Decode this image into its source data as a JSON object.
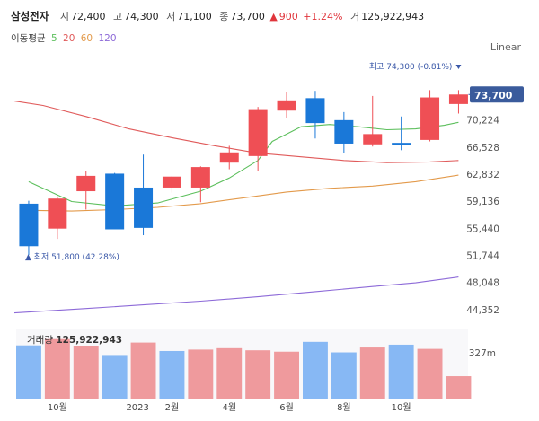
{
  "header": {
    "stock_name": "삼성전자",
    "open_label": "시",
    "open": "72,400",
    "high_label": "고",
    "high": "74,300",
    "low_label": "저",
    "low": "71,100",
    "close_label": "종",
    "close": "73,700",
    "change_arrow": "▲",
    "change": "900",
    "change_pct": "+1.24%",
    "volume_label": "거",
    "volume": "125,922,943"
  },
  "ma_legend": {
    "label": "이동평균",
    "items": [
      {
        "period": "5",
        "color": "#5cbf5c"
      },
      {
        "period": "20",
        "color": "#e05a5a"
      },
      {
        "period": "60",
        "color": "#e39a4b"
      },
      {
        "period": "120",
        "color": "#8d6ad8"
      }
    ]
  },
  "scale_mode": "Linear",
  "chart_data": {
    "type": "candlestick",
    "title": "삼성전자",
    "price_axis": {
      "range": [
        42500,
        79000
      ],
      "ticks": [
        "70,224",
        "66,528",
        "62,832",
        "59,136",
        "55,440",
        "51,744",
        "48,048",
        "44,352"
      ],
      "tick_values": [
        70224,
        66528,
        62832,
        59136,
        55440,
        51744,
        48048,
        44352
      ]
    },
    "candles": [
      {
        "o": 58800,
        "h": 59200,
        "l": 51800,
        "c": 53000
      },
      {
        "o": 55400,
        "h": 59800,
        "l": 54000,
        "c": 59500
      },
      {
        "o": 60500,
        "h": 63300,
        "l": 58000,
        "c": 62600
      },
      {
        "o": 62900,
        "h": 63000,
        "l": 55300,
        "c": 55300
      },
      {
        "o": 61000,
        "h": 65500,
        "l": 54500,
        "c": 55500
      },
      {
        "o": 61000,
        "h": 62600,
        "l": 60300,
        "c": 62500
      },
      {
        "o": 61000,
        "h": 63900,
        "l": 59000,
        "c": 63800
      },
      {
        "o": 64400,
        "h": 66700,
        "l": 63500,
        "c": 65800
      },
      {
        "o": 65300,
        "h": 72000,
        "l": 63300,
        "c": 71700
      },
      {
        "o": 71500,
        "h": 74000,
        "l": 70500,
        "c": 72900
      },
      {
        "o": 73200,
        "h": 74200,
        "l": 67700,
        "c": 69800
      },
      {
        "o": 70200,
        "h": 71300,
        "l": 65700,
        "c": 67000
      },
      {
        "o": 66900,
        "h": 73500,
        "l": 66600,
        "c": 68300
      },
      {
        "o": 67100,
        "h": 70700,
        "l": 66100,
        "c": 66800
      },
      {
        "o": 67500,
        "h": 74300,
        "l": 67300,
        "c": 73300
      },
      {
        "o": 72400,
        "h": 74300,
        "l": 71100,
        "c": 73700
      }
    ],
    "moving_averages": [
      {
        "period": "5",
        "color": "#5cbf5c",
        "values": [
          [
            0,
            61800
          ],
          [
            1.5,
            59100
          ],
          [
            3,
            58500
          ],
          [
            4.5,
            58900
          ],
          [
            6,
            60500
          ],
          [
            7,
            62300
          ],
          [
            8,
            64700
          ],
          [
            8.5,
            67300
          ],
          [
            9.5,
            69300
          ],
          [
            10.5,
            69600
          ],
          [
            11.5,
            69300
          ],
          [
            12.5,
            68900
          ],
          [
            13.5,
            69000
          ],
          [
            14.5,
            69500
          ],
          [
            15,
            69900
          ]
        ]
      },
      {
        "period": "20",
        "color": "#e05a5a",
        "values": [
          [
            -0.5,
            72800
          ],
          [
            0.5,
            72200
          ],
          [
            2,
            70700
          ],
          [
            3.5,
            69000
          ],
          [
            5,
            67800
          ],
          [
            6.5,
            66700
          ],
          [
            8,
            65700
          ],
          [
            9.5,
            65200
          ],
          [
            11,
            64700
          ],
          [
            12.5,
            64400
          ],
          [
            14,
            64500
          ],
          [
            15,
            64700
          ]
        ]
      },
      {
        "period": "60",
        "color": "#e39a4b",
        "values": [
          [
            0,
            57900
          ],
          [
            1.5,
            57800
          ],
          [
            3,
            58000
          ],
          [
            4.5,
            58300
          ],
          [
            6,
            58800
          ],
          [
            7.5,
            59600
          ],
          [
            9,
            60400
          ],
          [
            10.5,
            60900
          ],
          [
            12,
            61200
          ],
          [
            13.5,
            61800
          ],
          [
            15,
            62700
          ]
        ]
      },
      {
        "period": "120",
        "color": "#8d6ad8",
        "values": [
          [
            -0.5,
            43900
          ],
          [
            2,
            44500
          ],
          [
            4,
            45000
          ],
          [
            6,
            45500
          ],
          [
            8,
            46100
          ],
          [
            10,
            46800
          ],
          [
            12,
            47500
          ],
          [
            13.5,
            48000
          ],
          [
            15,
            48800
          ]
        ]
      }
    ],
    "current_price": {
      "value": 73700,
      "label": "73,700"
    },
    "max_annotation": {
      "label": "최고 74,300 (-0.81%)",
      "value": 74300,
      "index": 15
    },
    "min_annotation": {
      "label": "▲ 최저 51,800 (42.28%)",
      "value": 51800,
      "index": 0
    },
    "volume": {
      "label": "거래량",
      "total": "125,922,943",
      "axis_label": "327m",
      "bars": [
        {
          "value": 0.76,
          "up": false
        },
        {
          "value": 0.85,
          "up": true
        },
        {
          "value": 0.75,
          "up": true
        },
        {
          "value": 0.61,
          "up": false
        },
        {
          "value": 0.8,
          "up": true
        },
        {
          "value": 0.68,
          "up": false
        },
        {
          "value": 0.7,
          "up": true
        },
        {
          "value": 0.72,
          "up": true
        },
        {
          "value": 0.69,
          "up": true
        },
        {
          "value": 0.67,
          "up": true
        },
        {
          "value": 0.81,
          "up": false
        },
        {
          "value": 0.66,
          "up": false
        },
        {
          "value": 0.73,
          "up": true
        },
        {
          "value": 0.77,
          "up": false
        },
        {
          "value": 0.71,
          "up": true
        },
        {
          "value": 0.32,
          "up": true
        }
      ]
    },
    "x_labels": [
      {
        "index": 1,
        "label": "10월"
      },
      {
        "index": 3.8,
        "label": "2023"
      },
      {
        "index": 5,
        "label": "2월"
      },
      {
        "index": 7,
        "label": "4월"
      },
      {
        "index": 9,
        "label": "6월"
      },
      {
        "index": 11,
        "label": "8월"
      },
      {
        "index": 13,
        "label": "10월"
      }
    ]
  }
}
